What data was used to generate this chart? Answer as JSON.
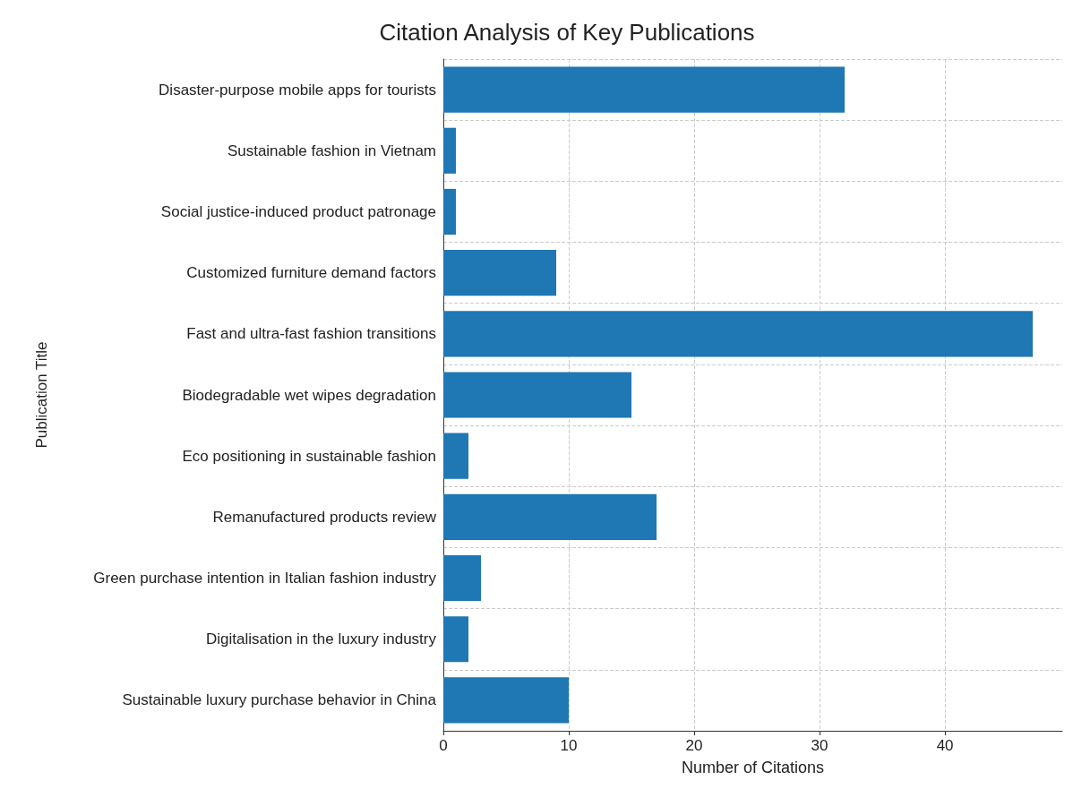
{
  "chart_data": {
    "type": "bar",
    "orientation": "horizontal",
    "title": "Citation Analysis of Key Publications",
    "xlabel": "Number of Citations",
    "ylabel": "Publication Title",
    "categories": [
      "Disaster-purpose mobile apps for tourists",
      "Sustainable fashion in Vietnam",
      "Social justice-induced product patronage",
      "Customized furniture demand factors",
      "Fast and ultra-fast fashion transitions",
      "Biodegradable wet wipes degradation",
      "Eco positioning in sustainable fashion",
      "Remanufactured products review",
      "Green purchase intention in Italian fashion industry",
      "Digitalisation in the luxury industry",
      "Sustainable luxury purchase behavior in China"
    ],
    "values": [
      32,
      1,
      1,
      9,
      47,
      15,
      2,
      17,
      3,
      2,
      10
    ],
    "color": "#1f77b4",
    "xlim": [
      0,
      49.35
    ],
    "xticks": [
      0,
      10,
      20,
      30,
      40
    ],
    "grid": true
  }
}
